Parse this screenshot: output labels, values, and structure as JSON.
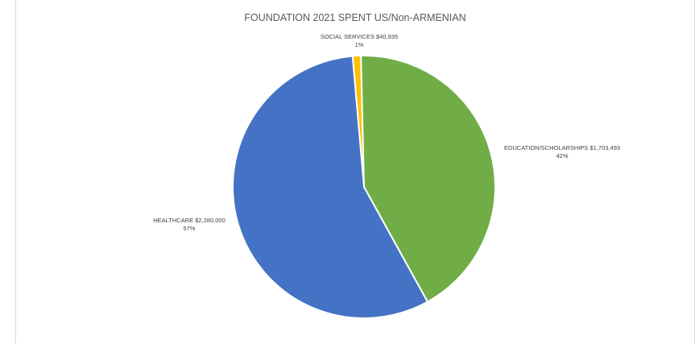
{
  "chart_data": {
    "type": "pie",
    "title": "FOUNDATION 2021 SPENT US/Non-ARMENIAN",
    "slices": [
      {
        "category": "SOCIAL SERVICES",
        "value": 40935,
        "value_label": "$40,935",
        "percent_label": "1%",
        "color": "#ffc000"
      },
      {
        "category": "EDUCATION/SCHOLARSHIPS",
        "value": 1703493,
        "value_label": "$1,703,493",
        "percent_label": "42%",
        "color": "#70ad47"
      },
      {
        "category": "HEALTHCARE",
        "value": 2280000,
        "value_label": "$2,280,000",
        "percent_label": "57%",
        "color": "#4472c4"
      }
    ],
    "start_angle_deg": -5,
    "direction": "clockwise",
    "legend": "none"
  }
}
